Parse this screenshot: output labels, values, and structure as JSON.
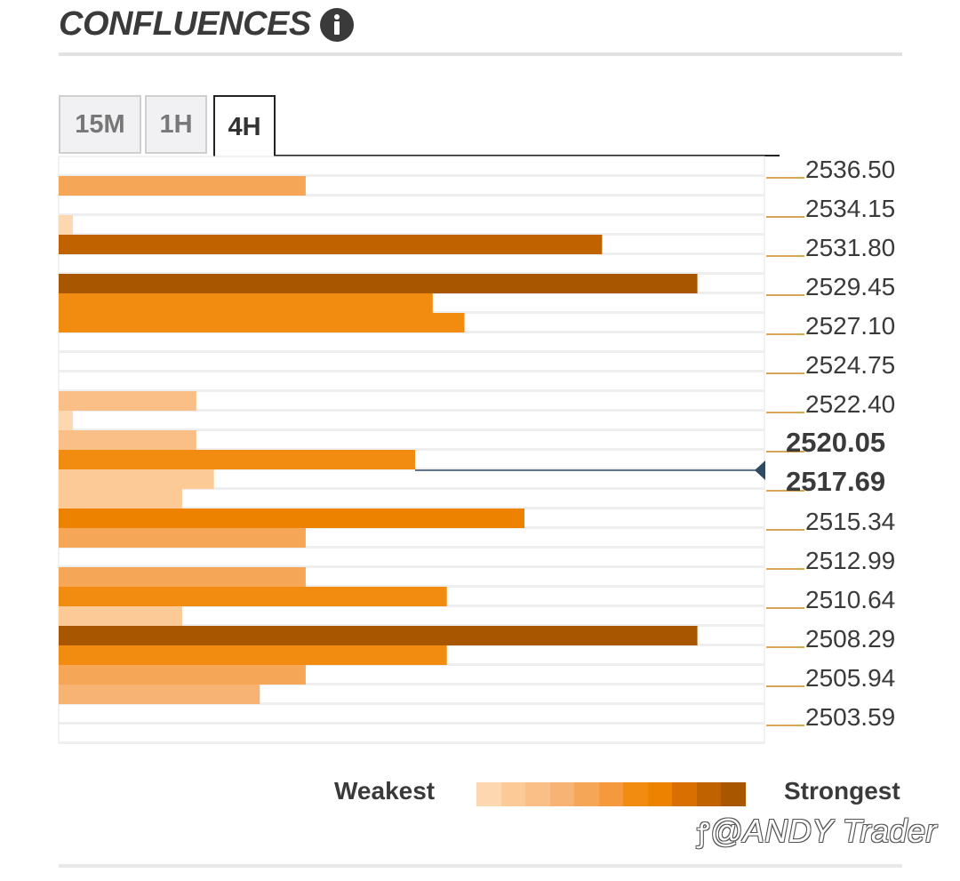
{
  "header": {
    "title": "CONFLUENCES"
  },
  "tabs": [
    {
      "label": "15M",
      "active": false
    },
    {
      "label": "1H",
      "active": false
    },
    {
      "label": "4H",
      "active": true
    }
  ],
  "legend": {
    "weakest_label": "Weakest",
    "strongest_label": "Strongest",
    "scale_colors": [
      "#fcd7b0",
      "#fbca97",
      "#f9bf86",
      "#f7b374",
      "#f5a657",
      "#f49a3c",
      "#f28c11",
      "#ec8200",
      "#d96f00",
      "#c06200",
      "#a95600"
    ]
  },
  "watermark": "@ANDY Trader",
  "chart_data": {
    "type": "bar",
    "orientation": "horizontal",
    "title": "",
    "xlabel": "",
    "ylabel": "",
    "price_labels": [
      "2536.50",
      "2534.15",
      "2531.80",
      "2529.45",
      "2527.10",
      "2524.75",
      "2522.40",
      "2520.05",
      "2517.69",
      "2515.34",
      "2512.99",
      "2510.64",
      "2508.29",
      "2505.94",
      "2503.59"
    ],
    "highlighted_labels": [
      "2520.05",
      "2517.69"
    ],
    "current_price": "2517.69",
    "strength_max": 10,
    "rows": [
      {
        "value": 0,
        "level": 0
      },
      {
        "value": 3.5,
        "level": 4
      },
      {
        "value": 0,
        "level": 0
      },
      {
        "value": 0.2,
        "level": 0
      },
      {
        "value": 7.7,
        "level": 9
      },
      {
        "value": 0,
        "level": 0
      },
      {
        "value": 9.05,
        "level": 10
      },
      {
        "value": 5.3,
        "level": 6
      },
      {
        "value": 5.75,
        "level": 6
      },
      {
        "value": 0,
        "level": 0
      },
      {
        "value": 0,
        "level": 0
      },
      {
        "value": 0,
        "level": 0
      },
      {
        "value": 1.95,
        "level": 2
      },
      {
        "value": 0.2,
        "level": 0
      },
      {
        "value": 1.95,
        "level": 2
      },
      {
        "value": 5.05,
        "level": 6
      },
      {
        "value": 2.2,
        "level": 1
      },
      {
        "value": 1.75,
        "level": 1
      },
      {
        "value": 6.6,
        "level": 7
      },
      {
        "value": 3.5,
        "level": 4
      },
      {
        "value": 0,
        "level": 0
      },
      {
        "value": 3.5,
        "level": 4
      },
      {
        "value": 5.5,
        "level": 6
      },
      {
        "value": 1.75,
        "level": 1
      },
      {
        "value": 9.05,
        "level": 10
      },
      {
        "value": 5.5,
        "level": 6
      },
      {
        "value": 3.5,
        "level": 4
      },
      {
        "value": 2.85,
        "level": 3
      },
      {
        "value": 0,
        "level": 0
      },
      {
        "value": 0,
        "level": 0
      }
    ]
  }
}
